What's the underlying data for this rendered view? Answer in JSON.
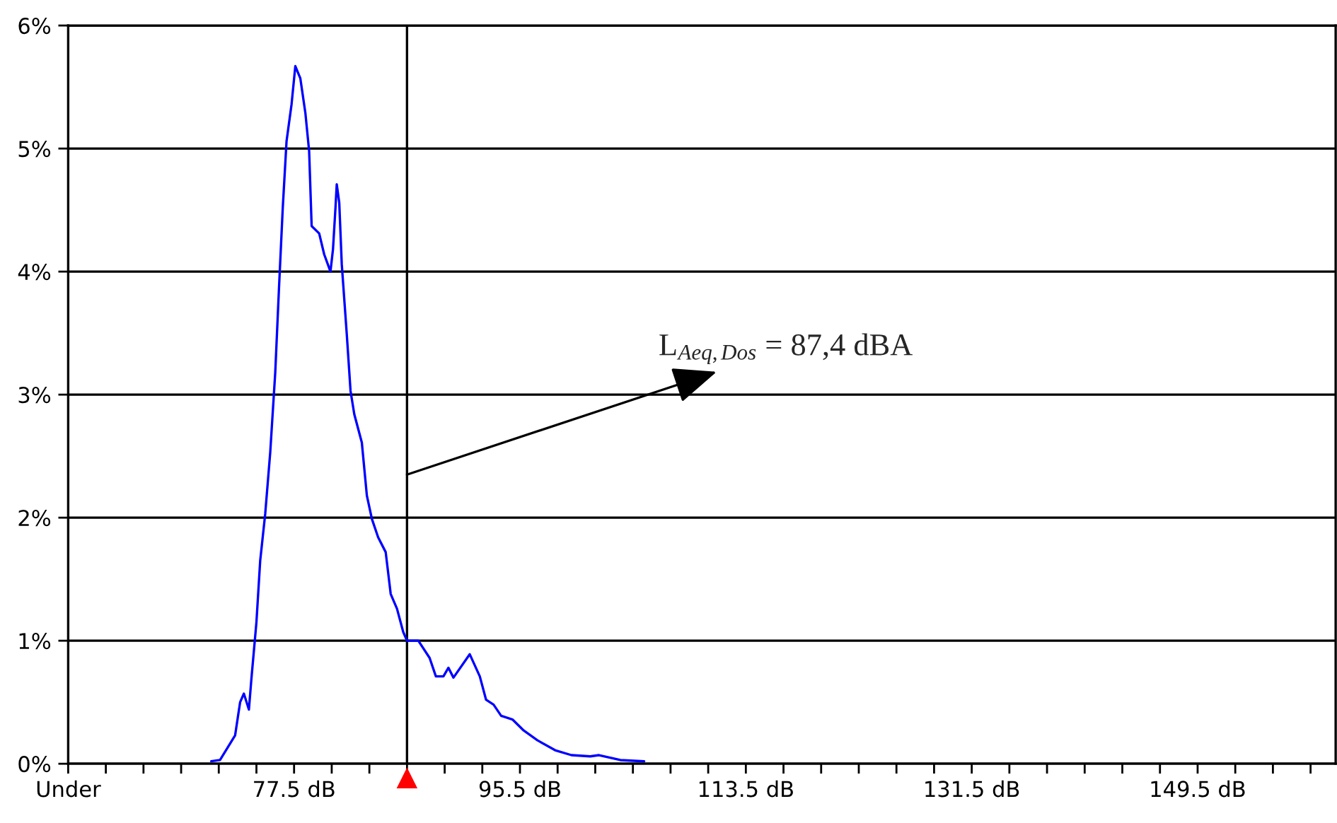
{
  "chart_data": {
    "type": "line",
    "series": [
      {
        "color": "#0000ff",
        "x": [
          70.9,
          71.6,
          72.8,
          73.2,
          73.5,
          73.9,
          74.1,
          74.5,
          74.8,
          75.2,
          75.6,
          76.0,
          76.3,
          76.6,
          76.9,
          77.3,
          77.6,
          78.0,
          78.4,
          78.7,
          78.9,
          79.5,
          79.9,
          80.4,
          80.6,
          80.8,
          80.9,
          81.1,
          81.3,
          81.7,
          82.0,
          82.3,
          82.9,
          83.3,
          83.7,
          84.2,
          84.8,
          85.2,
          85.7,
          86.2,
          86.5,
          87.4,
          88.3,
          88.8,
          89.4,
          89.8,
          90.2,
          91.5,
          92.3,
          92.8,
          93.4,
          94.0,
          94.9,
          95.8,
          96.9,
          98.3,
          99.6,
          101.1,
          101.8,
          103.5,
          105.4
        ],
        "values": [
          0.02,
          0.03,
          0.23,
          0.5,
          0.57,
          0.44,
          0.69,
          1.15,
          1.65,
          2.03,
          2.53,
          3.18,
          3.87,
          4.52,
          5.06,
          5.36,
          5.67,
          5.57,
          5.29,
          4.98,
          4.37,
          4.31,
          4.14,
          4.0,
          4.18,
          4.52,
          4.71,
          4.56,
          4.06,
          3.49,
          3.03,
          2.84,
          2.61,
          2.18,
          1.99,
          1.84,
          1.72,
          1.38,
          1.26,
          1.07,
          1.0,
          1.0,
          0.86,
          0.71,
          0.71,
          0.78,
          0.7,
          0.89,
          0.71,
          0.52,
          0.48,
          0.39,
          0.36,
          0.27,
          0.19,
          0.11,
          0.07,
          0.06,
          0.07,
          0.03,
          0.02
        ]
      }
    ],
    "xlim": [
      59.5,
      160.5
    ],
    "xticks": [
      {
        "value": 59.5,
        "label": "Under"
      },
      {
        "value": 62.5,
        "label": null
      },
      {
        "value": 65.5,
        "label": null
      },
      {
        "value": 68.5,
        "label": null
      },
      {
        "value": 71.5,
        "label": null
      },
      {
        "value": 74.5,
        "label": null
      },
      {
        "value": 77.5,
        "label": "77.5 dB"
      },
      {
        "value": 80.5,
        "label": null
      },
      {
        "value": 83.5,
        "label": null
      },
      {
        "value": 86.5,
        "label": null
      },
      {
        "value": 89.5,
        "label": null
      },
      {
        "value": 92.5,
        "label": null
      },
      {
        "value": 95.5,
        "label": "95.5 dB"
      },
      {
        "value": 98.5,
        "label": null
      },
      {
        "value": 101.5,
        "label": null
      },
      {
        "value": 104.5,
        "label": null
      },
      {
        "value": 107.5,
        "label": null
      },
      {
        "value": 110.5,
        "label": null
      },
      {
        "value": 113.5,
        "label": "113.5 dB"
      },
      {
        "value": 116.5,
        "label": null
      },
      {
        "value": 119.5,
        "label": null
      },
      {
        "value": 122.5,
        "label": null
      },
      {
        "value": 125.5,
        "label": null
      },
      {
        "value": 128.5,
        "label": null
      },
      {
        "value": 131.5,
        "label": "131.5 dB"
      },
      {
        "value": 134.5,
        "label": null
      },
      {
        "value": 137.5,
        "label": null
      },
      {
        "value": 140.5,
        "label": null
      },
      {
        "value": 143.5,
        "label": null
      },
      {
        "value": 146.5,
        "label": null
      },
      {
        "value": 149.5,
        "label": "149.5 dB"
      },
      {
        "value": 152.5,
        "label": null
      },
      {
        "value": 155.5,
        "label": null
      },
      {
        "value": 158.5,
        "label": null
      }
    ],
    "ylim": [
      0,
      6
    ],
    "yticks": [
      {
        "value": 0,
        "label": "0%"
      },
      {
        "value": 1,
        "label": "1%"
      },
      {
        "value": 2,
        "label": "2%"
      },
      {
        "value": 3,
        "label": "3%"
      },
      {
        "value": 4,
        "label": "4%"
      },
      {
        "value": 5,
        "label": "5%"
      },
      {
        "value": 6,
        "label": "6%"
      }
    ],
    "grid": "y",
    "ref_lines": [
      {
        "axis": "x",
        "value": 86.5,
        "color": "#000000"
      }
    ],
    "annotations": [
      {
        "text": "L$_{Aeq,Dos}$ = 87,4 dBA",
        "x": 86.5,
        "y": 2.35
      }
    ]
  }
}
